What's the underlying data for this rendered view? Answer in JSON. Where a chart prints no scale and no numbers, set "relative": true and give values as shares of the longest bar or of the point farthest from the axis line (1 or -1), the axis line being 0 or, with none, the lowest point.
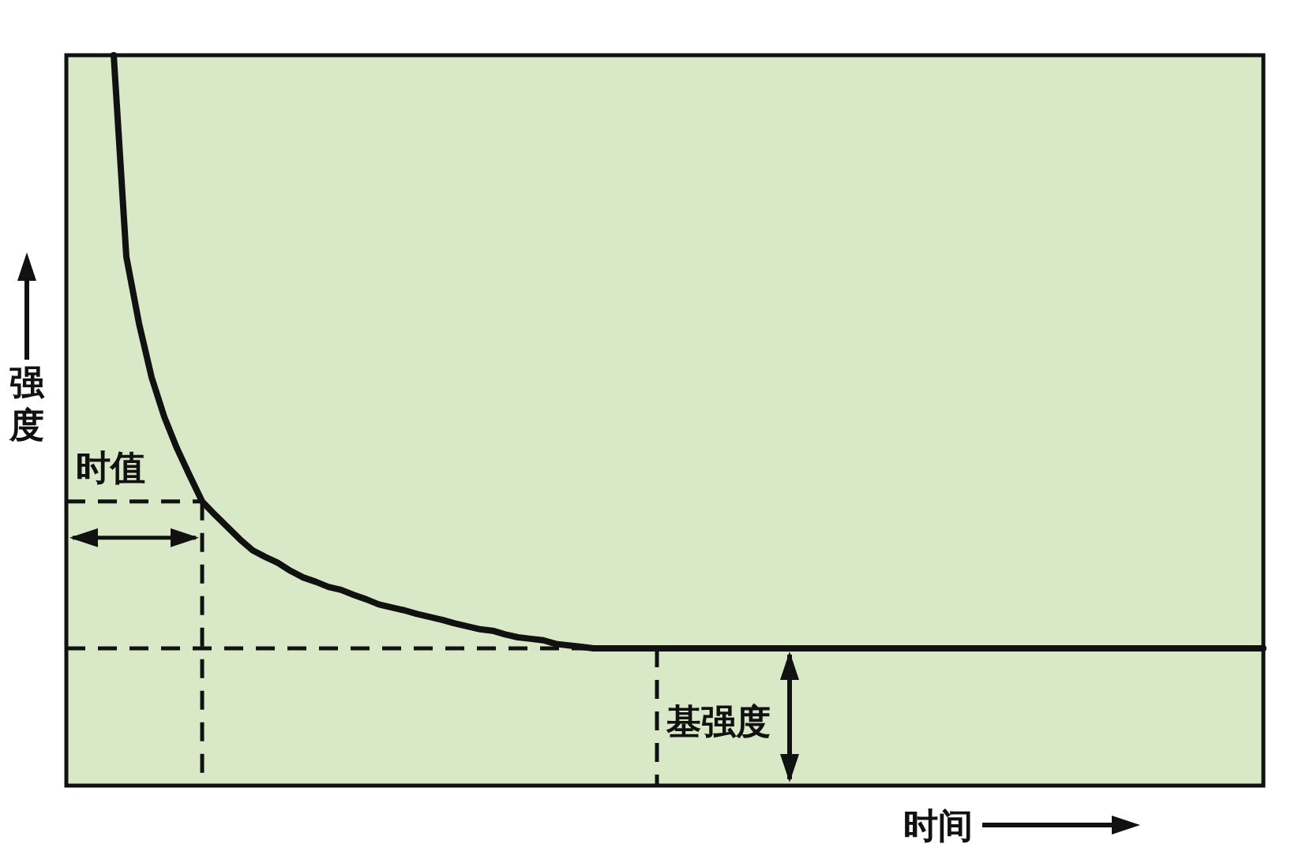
{
  "chart_data": {
    "type": "line",
    "relative": true,
    "xlabel": "时间",
    "ylabel": "强度",
    "categories": [
      null,
      null,
      null,
      null,
      null,
      null,
      null,
      null,
      null,
      null,
      null,
      null,
      null,
      null,
      null,
      null,
      null,
      null,
      null,
      null,
      null,
      null,
      null,
      null,
      null,
      null,
      null,
      null,
      null,
      null,
      null,
      null,
      null,
      null,
      null,
      null,
      null,
      null,
      null,
      null,
      null,
      null,
      null,
      null,
      null,
      null,
      null,
      null,
      null,
      null,
      null,
      null,
      null,
      null,
      null,
      null,
      null,
      null,
      null,
      null,
      null,
      null,
      null,
      null,
      null,
      null,
      null,
      null,
      null,
      null,
      null,
      null,
      null,
      null,
      null,
      null,
      null,
      null,
      null,
      null,
      null,
      null,
      null,
      null,
      null,
      null,
      null,
      null,
      null,
      null,
      null,
      null
    ],
    "values": [
      1.0,
      0.724,
      0.633,
      0.559,
      0.505,
      0.462,
      0.425,
      0.389,
      0.371,
      0.354,
      0.337,
      0.322,
      0.313,
      0.305,
      0.294,
      0.285,
      0.279,
      0.272,
      0.268,
      0.261,
      0.255,
      0.248,
      0.244,
      0.24,
      0.235,
      0.231,
      0.227,
      0.222,
      0.218,
      0.214,
      0.212,
      0.207,
      0.203,
      0.201,
      0.199,
      0.194,
      0.192,
      0.19,
      0.188,
      0.188,
      0.188,
      0.188,
      0.188,
      0.188,
      0.188,
      0.188,
      0.188,
      0.188,
      0.188,
      0.188,
      0.188,
      0.188,
      0.188,
      0.188,
      0.188,
      0.188,
      0.188,
      0.188,
      0.188,
      0.188,
      0.188,
      0.188,
      0.188,
      0.188,
      0.188,
      0.188,
      0.188,
      0.188,
      0.188,
      0.188,
      0.188,
      0.188,
      0.188,
      0.188,
      0.188,
      0.188,
      0.188,
      0.188,
      0.188,
      0.188,
      0.188,
      0.188,
      0.188,
      0.188,
      0.188,
      0.188,
      0.188,
      0.188,
      0.188,
      0.188,
      0.188,
      0.188
    ],
    "color": "#111111",
    "line_style": "solid",
    "ref_lines": [
      {
        "axis": "y",
        "value": 0.389,
        "label": "时值",
        "line_style": "dashed"
      },
      {
        "axis": "y",
        "value": 0.188,
        "label": "基强度",
        "line_style": "dashed"
      }
    ]
  }
}
